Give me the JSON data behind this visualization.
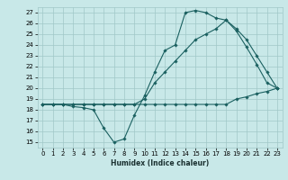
{
  "xlabel": "Humidex (Indice chaleur)",
  "ylabel": "",
  "bg_color": "#c8e8e8",
  "grid_color": "#a0c8c8",
  "line_color": "#1a6060",
  "xlim": [
    -0.5,
    23.5
  ],
  "ylim": [
    14.5,
    27.5
  ],
  "xticks": [
    0,
    1,
    2,
    3,
    4,
    5,
    6,
    7,
    8,
    9,
    10,
    11,
    12,
    13,
    14,
    15,
    16,
    17,
    18,
    19,
    20,
    21,
    22,
    23
  ],
  "yticks": [
    15,
    16,
    17,
    18,
    19,
    20,
    21,
    22,
    23,
    24,
    25,
    26,
    27
  ],
  "line1_x": [
    0,
    1,
    2,
    3,
    4,
    5,
    6,
    7,
    8,
    9,
    10,
    11,
    12,
    13,
    14,
    15,
    16,
    17,
    18,
    19,
    20,
    21,
    22,
    23
  ],
  "line1_y": [
    18.5,
    18.5,
    18.5,
    18.5,
    18.5,
    18.5,
    18.5,
    18.5,
    18.5,
    18.5,
    18.5,
    18.5,
    18.5,
    18.5,
    18.5,
    18.5,
    18.5,
    18.5,
    18.5,
    19.0,
    19.2,
    19.5,
    19.7,
    20.0
  ],
  "line2_x": [
    0,
    1,
    2,
    3,
    4,
    5,
    6,
    7,
    8,
    9,
    10,
    11,
    12,
    13,
    14,
    15,
    16,
    17,
    18,
    19,
    20,
    21,
    22,
    23
  ],
  "line2_y": [
    18.5,
    18.5,
    18.5,
    18.3,
    18.2,
    18.0,
    16.3,
    15.0,
    15.3,
    17.5,
    19.3,
    21.5,
    23.5,
    24.0,
    27.0,
    27.2,
    27.0,
    26.5,
    26.3,
    25.3,
    23.8,
    22.2,
    20.5,
    20.0
  ],
  "line3_x": [
    0,
    1,
    2,
    3,
    4,
    5,
    6,
    7,
    8,
    9,
    10,
    11,
    12,
    13,
    14,
    15,
    16,
    17,
    18,
    19,
    20,
    21,
    22,
    23
  ],
  "line3_y": [
    18.5,
    18.5,
    18.5,
    18.5,
    18.5,
    18.5,
    18.5,
    18.5,
    18.5,
    18.5,
    19.0,
    20.5,
    21.5,
    22.5,
    23.5,
    24.5,
    25.0,
    25.5,
    26.3,
    25.5,
    24.5,
    23.0,
    21.5,
    20.0
  ]
}
